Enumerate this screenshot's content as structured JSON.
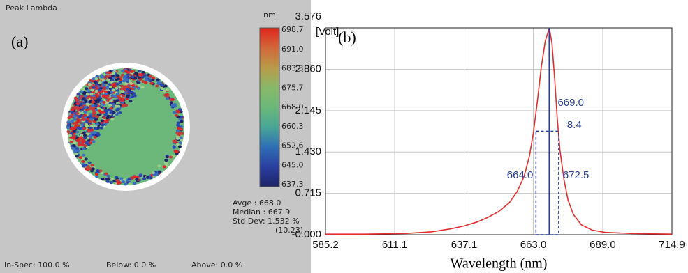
{
  "left_panel": {
    "title": "Peak Lambda",
    "label": "(a)",
    "colorbar": {
      "unit": "nm",
      "labels": [
        "698.7",
        "691.0",
        "683.3",
        "675.7",
        "668.0",
        "660.3",
        "652.6",
        "645.0",
        "637.3"
      ],
      "colors": [
        "#e0241d",
        "#d2683a",
        "#b99a4a",
        "#88b868",
        "#6cb87a",
        "#4aa596",
        "#2f6fb5",
        "#2a3f9f",
        "#1e2466"
      ]
    },
    "stats": [
      "Avge    :  668.0",
      "Median :  667.9",
      "Std Dev: 1.532 %",
      "(10.23)"
    ],
    "footer": [
      "In-Spec: 100.0 %",
      "Below:  0.0 %",
      "Above:  0.0 %"
    ]
  },
  "chart_data": {
    "type": "line",
    "label": "(b)",
    "ylabel": "[Volt]",
    "xlabel": "Wavelength (nm)",
    "xlim": [
      585.2,
      714.9
    ],
    "ylim": [
      0,
      3.576
    ],
    "xticks": [
      585.2,
      611.1,
      637.1,
      {
        "value": 663.0,
        "label": "663.0"
      },
      {
        "value": 689.0,
        "label": "689.0"
      },
      714.9
    ],
    "yticks": [
      {
        "value": 0,
        "label": "-0.000"
      },
      0.715,
      {
        "value": 1.43,
        "label": "1.430"
      },
      2.145,
      {
        "value": 2.86,
        "label": "2.860"
      },
      3.576
    ],
    "grid": true,
    "series": [
      {
        "name": null,
        "color": "#e03030",
        "x": [
          585.2,
          600,
          615,
          625,
          632,
          637,
          642,
          646,
          650,
          654,
          657,
          659.5,
          661.5,
          663,
          664.5,
          666,
          667.5,
          669,
          670,
          671,
          672,
          673,
          674.5,
          676,
          678,
          681,
          685,
          690,
          700,
          714.9
        ],
        "values": [
          0.01,
          0.01,
          0.02,
          0.05,
          0.1,
          0.15,
          0.22,
          0.3,
          0.4,
          0.55,
          0.75,
          1.0,
          1.35,
          1.75,
          2.3,
          2.9,
          3.35,
          3.576,
          3.3,
          2.7,
          2.0,
          1.45,
          0.95,
          0.6,
          0.35,
          0.17,
          0.08,
          0.04,
          0.02,
          0.01
        ]
      }
    ],
    "fwhm": {
      "left": {
        "value": 664.0,
        "label": "664.0"
      },
      "right": 672.5,
      "peak": {
        "value": 669.0,
        "label": "669.0"
      },
      "width": 8.4,
      "half_max": 1.79,
      "color": "#2a3f9a"
    }
  }
}
